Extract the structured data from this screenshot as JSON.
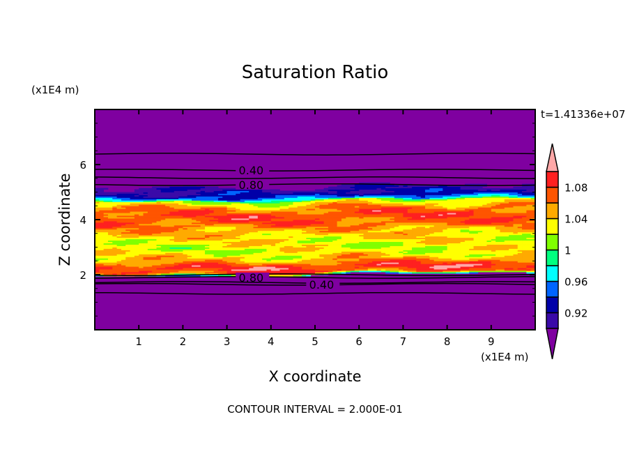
{
  "chart_data": {
    "type": "heatmap",
    "title": "Saturation Ratio",
    "xlabel": "X coordinate",
    "ylabel": "Z coordinate",
    "x_unit": "(x1E4 m)",
    "y_unit": "(x1E4 m)",
    "xlim": [
      0,
      10
    ],
    "ylim": [
      0,
      8
    ],
    "xticks": [
      "1",
      "2",
      "3",
      "4",
      "5",
      "6",
      "7",
      "8",
      "9"
    ],
    "yticks": [
      "2",
      "4",
      "6"
    ],
    "time_label": "t=1.41336e+07",
    "footer": "CONTOUR INTERVAL = 2.000E-01",
    "contour_lines": [
      {
        "z": 6.38,
        "label": ""
      },
      {
        "z": 5.8,
        "label": "0.40"
      },
      {
        "z": 5.52,
        "label": ""
      },
      {
        "z": 5.27,
        "label": "0.80"
      },
      {
        "z": 2.0,
        "label": ""
      },
      {
        "z": 1.9,
        "label": "0.80"
      },
      {
        "z": 1.72,
        "label": ""
      },
      {
        "z": 1.65,
        "label": "0.40"
      },
      {
        "z": 1.32,
        "label": ""
      }
    ],
    "saturated_layer_z": [
      2.0,
      4.75
    ],
    "profile": [
      [
        2.0,
        0.95
      ],
      [
        2.1,
        1.07
      ],
      [
        2.3,
        1.09
      ],
      [
        2.6,
        1.04
      ],
      [
        3.0,
        1.025
      ],
      [
        3.5,
        1.04
      ],
      [
        3.9,
        1.07
      ],
      [
        4.2,
        1.08
      ],
      [
        4.5,
        1.05
      ],
      [
        4.7,
        1.02
      ],
      [
        4.75,
        0.97
      ],
      [
        4.9,
        0.93
      ],
      [
        5.2,
        0.91
      ],
      [
        5.3,
        0.85
      ]
    ],
    "colorbar": {
      "levels": [
        0.9,
        0.92,
        0.94,
        0.96,
        0.98,
        1.0,
        1.02,
        1.04,
        1.06,
        1.08,
        1.1
      ],
      "labels": [
        "0.92",
        "0.96",
        "1",
        "1.04",
        "1.08"
      ],
      "label_values": [
        0.92,
        0.96,
        1.0,
        1.04,
        1.08
      ],
      "under_color": "#7f00a0",
      "over_color": "#ffa8a8",
      "colors": [
        "#3a0aa8",
        "#0000a8",
        "#0064ff",
        "#00ffff",
        "#00ff80",
        "#80ff00",
        "#ffff00",
        "#ffaa00",
        "#ff5500",
        "#ff2020"
      ]
    }
  }
}
